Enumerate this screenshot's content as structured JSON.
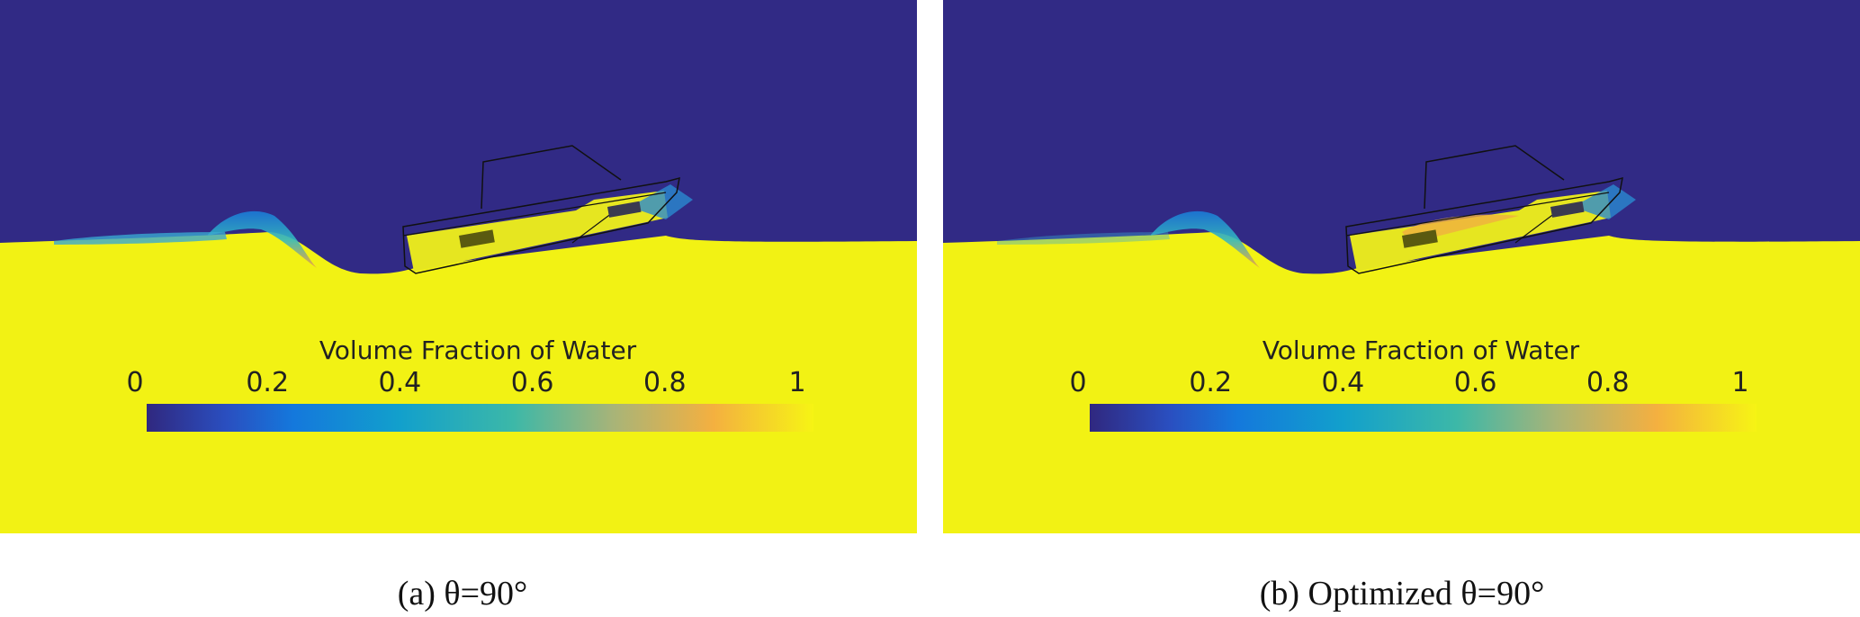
{
  "panels": [
    {
      "caption": "(a) θ=90°",
      "colorbar": {
        "title": "Volume Fraction of Water",
        "ticks": [
          0,
          0.2,
          0.4,
          0.6,
          0.8,
          1
        ]
      }
    },
    {
      "caption": "(b) Optimized θ=90°",
      "colorbar": {
        "title": "Volume Fraction of Water",
        "ticks": [
          0,
          0.2,
          0.4,
          0.6,
          0.8,
          1
        ]
      }
    }
  ]
}
